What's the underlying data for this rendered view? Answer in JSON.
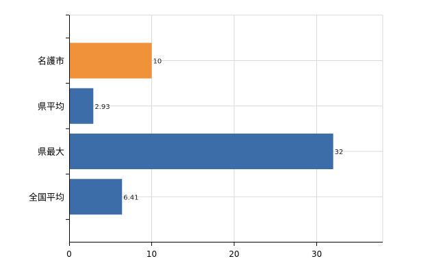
{
  "chart_data": {
    "type": "bar",
    "orientation": "horizontal",
    "categories": [
      "名護市",
      "県平均",
      "県最大",
      "全国平均"
    ],
    "values": [
      10,
      2.93,
      32,
      6.41
    ],
    "data_labels": [
      "10",
      "2.93",
      "32",
      "6.41"
    ],
    "colors": [
      "#f0923a",
      "#3d6da8",
      "#3d6da8",
      "#3d6da8"
    ],
    "xlim": [
      0,
      38
    ],
    "xticks": [
      0,
      10,
      20,
      30
    ],
    "xtick_labels": [
      "0",
      "10",
      "20",
      "30"
    ],
    "grid": true,
    "legend": "none"
  }
}
